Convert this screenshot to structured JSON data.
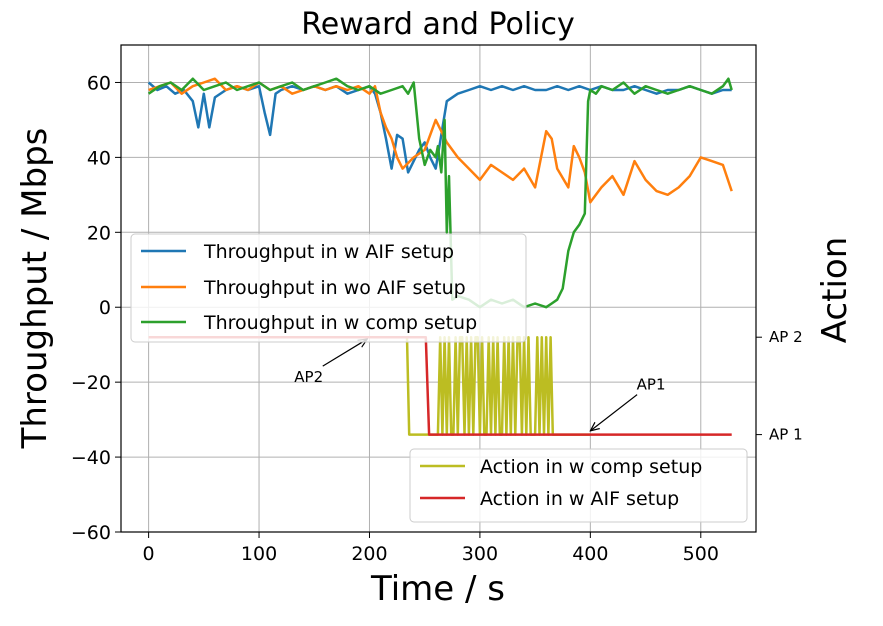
{
  "chart_data": {
    "type": "line",
    "title": "Reward and Policy",
    "xlabel": "Time / s",
    "ylabel": "Throughput / Mbps",
    "y2label": "Action",
    "xlim": [
      -25,
      550
    ],
    "ylim": [
      -60,
      70
    ],
    "grid": true,
    "x_ticks": [
      0,
      100,
      200,
      300,
      400,
      500
    ],
    "x_tick_labels": [
      "0",
      "100",
      "200",
      "300",
      "400",
      "500"
    ],
    "y_ticks": [
      -60,
      -40,
      -20,
      0,
      20,
      40,
      60
    ],
    "y_tick_labels": [
      "−60",
      "−40",
      "−20",
      "0",
      "20",
      "40",
      "60"
    ],
    "y2_ticks": [
      {
        "label": "AP 2",
        "y": -8
      },
      {
        "label": "AP 1",
        "y": -34
      }
    ],
    "legends": [
      {
        "placement": "middle-left",
        "entries": [
          {
            "label": "Throughput in w AIF setup",
            "series": 0
          },
          {
            "label": "Throughput in wo AIF setup",
            "series": 1
          },
          {
            "label": "Throughput in w comp setup",
            "series": 2
          }
        ]
      },
      {
        "placement": "lower-right",
        "entries": [
          {
            "label": "Action in w comp setup",
            "series": 3
          },
          {
            "label": "Action in w AIF setup",
            "series": 4
          }
        ]
      }
    ],
    "annotations": [
      {
        "text": "AP2",
        "text_x": 145,
        "text_y": -20,
        "arrow_x": 198,
        "arrow_y": -8.5
      },
      {
        "text": "AP1",
        "text_x": 455,
        "text_y": -22,
        "arrow_x": 400,
        "arrow_y": -33
      }
    ],
    "series": [
      {
        "name": "Throughput in w AIF setup",
        "color": "#1f77b4",
        "x": [
          0,
          8,
          16,
          24,
          32,
          40,
          45,
          50,
          55,
          60,
          70,
          80,
          90,
          100,
          105,
          110,
          115,
          120,
          130,
          140,
          150,
          160,
          170,
          180,
          190,
          200,
          205,
          210,
          215,
          220,
          225,
          230,
          235,
          240,
          245,
          250,
          255,
          260,
          265,
          270,
          280,
          290,
          300,
          310,
          320,
          330,
          340,
          350,
          360,
          370,
          380,
          390,
          400,
          410,
          420,
          430,
          440,
          450,
          460,
          470,
          480,
          490,
          500,
          510,
          520,
          528
        ],
        "y": [
          60,
          58,
          59,
          57,
          58,
          55,
          48,
          57,
          48,
          56,
          58,
          59,
          58,
          59,
          52,
          46,
          57,
          58,
          59,
          58,
          59,
          58,
          59,
          57,
          58,
          59,
          57,
          52,
          45,
          37,
          46,
          45,
          36,
          39,
          42,
          44,
          40,
          37,
          46,
          55,
          57,
          58,
          59,
          58,
          59,
          58,
          59,
          58,
          58,
          59,
          58,
          59,
          58,
          59,
          58,
          58,
          59,
          58,
          57,
          58,
          58,
          59,
          58,
          57,
          58,
          58
        ]
      },
      {
        "name": "Throughput in wo AIF setup",
        "color": "#ff7f0e",
        "x": [
          0,
          10,
          20,
          30,
          40,
          50,
          60,
          70,
          80,
          90,
          100,
          110,
          120,
          130,
          140,
          150,
          160,
          170,
          180,
          190,
          200,
          205,
          210,
          215,
          220,
          225,
          230,
          240,
          250,
          260,
          270,
          280,
          290,
          300,
          310,
          320,
          330,
          340,
          350,
          360,
          365,
          370,
          380,
          385,
          390,
          395,
          400,
          410,
          420,
          430,
          440,
          450,
          460,
          470,
          480,
          490,
          500,
          510,
          520,
          528
        ],
        "y": [
          58,
          59,
          60,
          57,
          59,
          60,
          61,
          58,
          59,
          58,
          60,
          58,
          59,
          57,
          58,
          59,
          58,
          59,
          58,
          59,
          57,
          59,
          52,
          48,
          45,
          40,
          37,
          40,
          42,
          50,
          44,
          40,
          37,
          34,
          38,
          36,
          34,
          37,
          32,
          47,
          45,
          37,
          32,
          43,
          40,
          36,
          28,
          32,
          35,
          30,
          39,
          34,
          31,
          30,
          32,
          35,
          40,
          39,
          38,
          31
        ]
      },
      {
        "name": "Throughput in w comp setup",
        "color": "#2ca02c",
        "x": [
          0,
          10,
          20,
          30,
          40,
          50,
          60,
          70,
          80,
          90,
          100,
          110,
          120,
          130,
          140,
          150,
          160,
          170,
          180,
          190,
          200,
          210,
          220,
          230,
          235,
          240,
          245,
          250,
          255,
          260,
          262,
          265,
          268,
          270,
          272,
          275,
          280,
          290,
          300,
          310,
          320,
          330,
          340,
          350,
          360,
          365,
          370,
          375,
          380,
          385,
          390,
          395,
          398,
          400,
          405,
          410,
          420,
          430,
          440,
          450,
          460,
          470,
          480,
          490,
          500,
          510,
          520,
          525,
          528
        ],
        "y": [
          57,
          59,
          60,
          58,
          61,
          58,
          59,
          60,
          58,
          59,
          60,
          58,
          59,
          60,
          58,
          59,
          60,
          61,
          59,
          58,
          59,
          57,
          58,
          59,
          57,
          60,
          45,
          38,
          42,
          40,
          43,
          36,
          50,
          20,
          35,
          2,
          3,
          2,
          0,
          2,
          1,
          2,
          0,
          1,
          0,
          1,
          2,
          5,
          15,
          20,
          22,
          25,
          55,
          58,
          57,
          59,
          58,
          60,
          57,
          59,
          58,
          57,
          58,
          59,
          58,
          57,
          59,
          61,
          58
        ]
      },
      {
        "name": "Action in w comp setup",
        "color": "#bcbd22",
        "x": [
          0,
          234,
          236,
          240,
          262,
          264,
          266,
          268,
          270,
          272,
          274,
          276,
          278,
          280,
          282,
          284,
          286,
          288,
          290,
          292,
          294,
          296,
          298,
          300,
          302,
          304,
          306,
          308,
          310,
          312,
          314,
          316,
          318,
          320,
          322,
          324,
          326,
          328,
          330,
          332,
          334,
          336,
          338,
          340,
          342,
          344,
          346,
          348,
          350,
          352,
          354,
          356,
          358,
          360,
          362,
          364,
          366,
          368,
          400
        ],
        "y": [
          -8,
          -8,
          -34,
          -34,
          -34,
          -8,
          -34,
          -8,
          -34,
          -8,
          -34,
          -34,
          -8,
          -34,
          -8,
          -8,
          -34,
          -8,
          -34,
          -8,
          -34,
          -8,
          -8,
          -34,
          -8,
          -34,
          -34,
          -8,
          -34,
          -8,
          -34,
          -8,
          -34,
          -34,
          -8,
          -34,
          -8,
          -34,
          -8,
          -34,
          -8,
          -8,
          -34,
          -8,
          -34,
          -8,
          -34,
          -34,
          -34,
          -8,
          -34,
          -8,
          -34,
          -8,
          -34,
          -8,
          -34,
          -34,
          -34
        ]
      },
      {
        "name": "Action in w AIF setup",
        "color": "#d62728",
        "x": [
          0,
          251,
          254,
          528
        ],
        "y": [
          -8,
          -8,
          -34,
          -34
        ]
      }
    ]
  }
}
